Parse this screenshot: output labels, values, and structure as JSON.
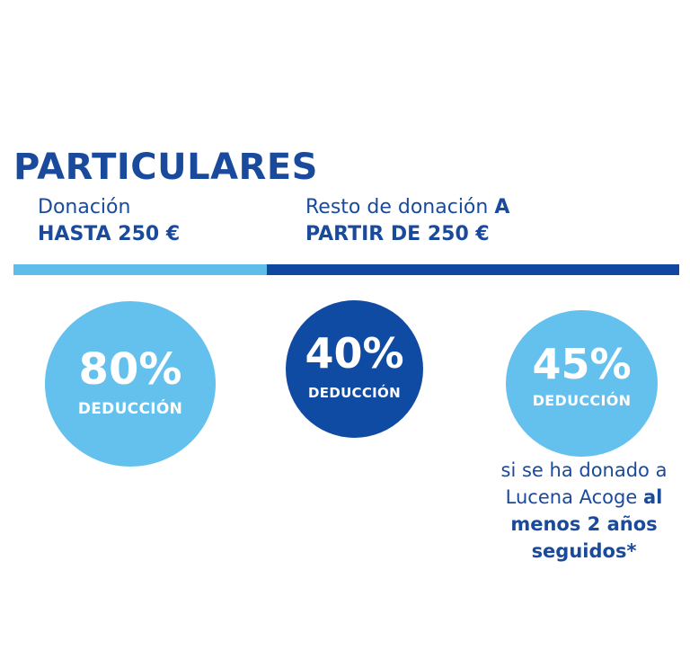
{
  "title": "PARTICULARES",
  "tiers": [
    {
      "line1": "Donación",
      "line1_bold": "",
      "line2": "HASTA 250 €"
    },
    {
      "line1": "Resto de donación ",
      "line1_bold": "A",
      "line2": "PARTIR DE 250 €"
    }
  ],
  "circles": [
    {
      "percent": "80%",
      "label": "DEDUCCIÓN",
      "color": "#64c0ec"
    },
    {
      "percent": "40%",
      "label": "DEDUCCIÓN",
      "color": "#0f4aa3"
    },
    {
      "percent": "45%",
      "label": "DEDUCCIÓN",
      "color": "#64c0ec"
    }
  ],
  "note": {
    "line1": "si se ha donado a",
    "line2_plain": "Lucena Acoge ",
    "line2_bold": "al",
    "line3": "menos 2 años",
    "line4": "seguidos*"
  },
  "colors": {
    "primary": "#1a4a9c",
    "light_blue": "#5ebde9",
    "dark_blue": "#0f47a1"
  }
}
